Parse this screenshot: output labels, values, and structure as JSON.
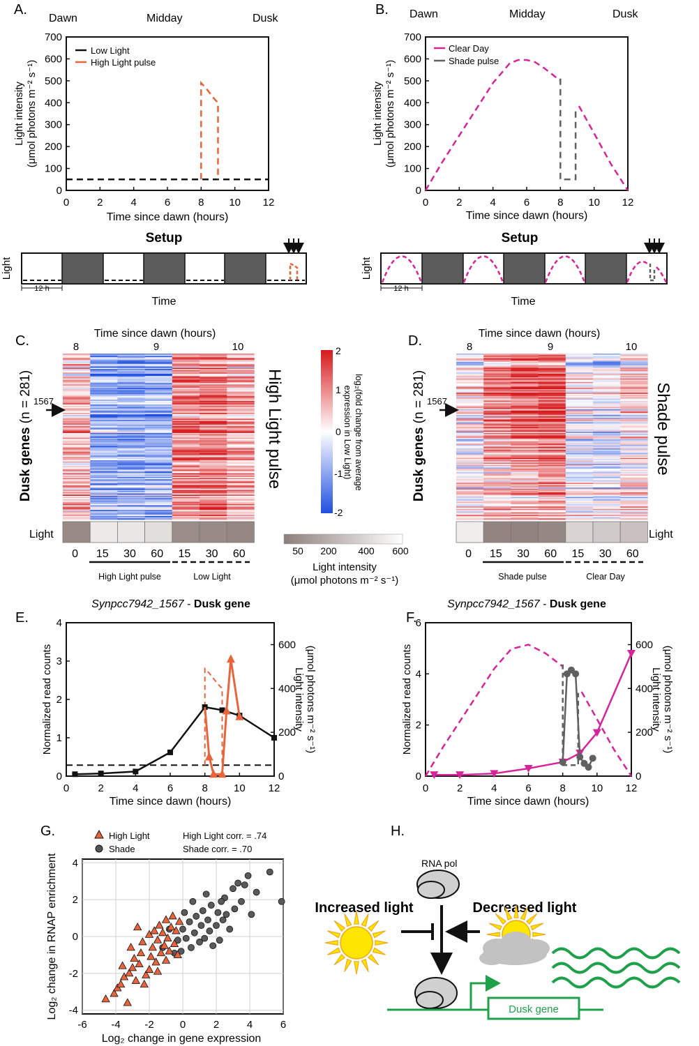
{
  "panelA": {
    "letter": "A.",
    "time_labels": [
      "Dawn",
      "Midday",
      "Dusk"
    ],
    "xlabel": "Time since dawn (hours)",
    "ylabel_line1": "Light intensity",
    "ylabel_line2": "(μmol photons m⁻² s⁻¹)",
    "xticks": [
      "0",
      "2",
      "4",
      "6",
      "8",
      "10",
      "12"
    ],
    "yticks": [
      "0",
      "100",
      "200",
      "300",
      "400",
      "500",
      "600",
      "700"
    ],
    "legend": [
      "Low Light",
      "High Light pulse"
    ],
    "series": {
      "low_light": {
        "x": [
          0,
          12
        ],
        "y": [
          50,
          50
        ]
      },
      "high_pulse": {
        "x": [
          8,
          8,
          8.25,
          8.75,
          9,
          9
        ],
        "y": [
          50,
          490,
          470,
          420,
          400,
          50
        ]
      }
    }
  },
  "panelB": {
    "letter": "B.",
    "time_labels": [
      "Dawn",
      "Midday",
      "Dusk"
    ],
    "xlabel": "Time since dawn (hours)",
    "ylabel_line1": "Light intensity",
    "ylabel_line2": "(μmol photons m⁻² s⁻¹)",
    "xticks": [
      "0",
      "2",
      "4",
      "6",
      "8",
      "10",
      "12"
    ],
    "yticks": [
      "0",
      "100",
      "200",
      "300",
      "400",
      "500",
      "600",
      "700"
    ],
    "legend": [
      "Clear Day",
      "Shade pulse"
    ],
    "series": {
      "clear_day_x": [
        0,
        1,
        2,
        3,
        4,
        5,
        5.5,
        6,
        6.5,
        7,
        7.5,
        8,
        null,
        9.1,
        10,
        11,
        12
      ],
      "clear_day_y": [
        0,
        130,
        250,
        370,
        490,
        580,
        595,
        595,
        585,
        560,
        530,
        500,
        null,
        385,
        260,
        120,
        0
      ],
      "shade_x": [
        8,
        8,
        8.5,
        8.9,
        8.9
      ],
      "shade_y": [
        510,
        50,
        50,
        50,
        380
      ]
    }
  },
  "setup": {
    "title": "Setup",
    "ylabel": "Light",
    "xlabel": "Time",
    "scale": "12 h"
  },
  "panelC": {
    "letter": "C.",
    "top_label": "Time since dawn (hours)",
    "top_ticks": [
      "8",
      "9",
      "10"
    ],
    "ylabel": "Dusk genes",
    "ylabel_n": "(n = 281)",
    "gene_marker": "1567",
    "side_label": "High Light pulse",
    "light_label": "Light",
    "minutes": [
      "0",
      "15",
      "30",
      "60",
      "15",
      "30",
      "60"
    ],
    "group1": "High Light pulse",
    "group2": "Low Light"
  },
  "panelD": {
    "letter": "D.",
    "top_label": "Time since dawn (hours)",
    "top_ticks": [
      "8",
      "9",
      "10"
    ],
    "ylabel": "Dusk genes",
    "ylabel_n": "(n = 281)",
    "gene_marker": "1567",
    "side_label": "Shade pulse",
    "light_label": "Light",
    "minutes": [
      "0",
      "15",
      "30",
      "60",
      "15",
      "30",
      "60"
    ],
    "group1": "Shade pulse",
    "group2": "Clear Day"
  },
  "colorbar": {
    "ticks": [
      "2",
      "1",
      "0",
      "-1",
      "-2"
    ],
    "label_line1": "log₂(fold change from average",
    "label_line2": "expression in Low Light)",
    "light_ticks": [
      "50",
      "200",
      "400",
      "600"
    ],
    "light_label_line1": "Light intensity",
    "light_label_line2": "(μmol photons m⁻² s⁻¹)"
  },
  "panelE": {
    "letter": "E.",
    "title_italic": "Synpcc7942_1567",
    "title_rest": " - ",
    "title_bold": "Dusk gene",
    "xlabel": "Time since dawn (hours)",
    "ylabel": "Normalized read counts",
    "ylabel_right_line1": "Light intensity",
    "ylabel_right_line2": "(μmol photons m⁻² s⁻¹)",
    "xticks": [
      "0",
      "2",
      "4",
      "6",
      "8",
      "10",
      "12"
    ],
    "yticks": [
      "0",
      "1",
      "2",
      "3",
      "4"
    ],
    "yticks_right": [
      "0",
      "200",
      "400",
      "600"
    ],
    "chart_data": {
      "type": "line",
      "low_light_counts": {
        "x": [
          0.5,
          2,
          4,
          6,
          8,
          9,
          10,
          12
        ],
        "y": [
          0.05,
          0.07,
          0.12,
          0.62,
          1.8,
          1.72,
          1.58,
          1.0
        ]
      },
      "high_light_counts": {
        "x": [
          8,
          8.25,
          8.5,
          9,
          9.25,
          9.5,
          10
        ],
        "y": [
          1.8,
          0.5,
          0.05,
          0.05,
          1.7,
          3.05,
          1.55
        ]
      },
      "light_low": {
        "x": [
          0,
          12
        ],
        "y": [
          50,
          50
        ]
      },
      "light_high": {
        "x": [
          8,
          8,
          8.25,
          8.75,
          9,
          9
        ],
        "y": [
          50,
          490,
          470,
          420,
          400,
          50
        ]
      }
    }
  },
  "panelF": {
    "letter": "F.",
    "title_italic": "Synpcc7942_1567",
    "title_rest": " - ",
    "title_bold": "Dusk gene",
    "xlabel": "Time since dawn (hours)",
    "ylabel": "Normalized read counts",
    "ylabel_right_line1": "Light intensity",
    "ylabel_right_line2": "(μmol photons m⁻² s⁻¹)",
    "xticks": [
      "0",
      "2",
      "4",
      "6",
      "8",
      "10",
      "12"
    ],
    "yticks": [
      "0",
      "2",
      "4",
      "6"
    ],
    "yticks_right": [
      "0",
      "200",
      "400",
      "600"
    ],
    "chart_data": {
      "type": "line",
      "clear_counts": {
        "x": [
          0.5,
          2,
          4,
          6,
          8,
          9,
          10,
          12
        ],
        "y": [
          0.05,
          0.05,
          0.1,
          0.3,
          0.55,
          0.9,
          1.7,
          4.8
        ]
      },
      "shade_counts": {
        "x": [
          8,
          8.25,
          8.5,
          8.75,
          9,
          9.25,
          9.5,
          9.75
        ],
        "y": [
          0.55,
          4.0,
          4.15,
          4.0,
          0.75,
          0.5,
          0.35,
          0.7
        ]
      },
      "light_clear_x": [
        0,
        1,
        2,
        3,
        4,
        5,
        6,
        7,
        8,
        null,
        9.1,
        10,
        11,
        12
      ],
      "light_clear_y": [
        0,
        130,
        250,
        370,
        490,
        580,
        600,
        560,
        500,
        null,
        385,
        260,
        120,
        0
      ],
      "light_shade_x": [
        8,
        8,
        8.5,
        8.9,
        8.9
      ],
      "light_shade_y": [
        510,
        50,
        50,
        50,
        380
      ]
    }
  },
  "panelG": {
    "letter": "G.",
    "legend": [
      "High Light",
      "Shade"
    ],
    "corr1": "High Light corr. = .74",
    "corr2": "Shade corr. = .70",
    "xlabel": "Log₂ change in gene expression",
    "ylabel": "Log₂ change in RNAP enrichment",
    "xticks": [
      "-6",
      "-4",
      "-2",
      "0",
      "2",
      "4",
      "6"
    ],
    "yticks": [
      "-4",
      "-2",
      "0",
      "2",
      "4"
    ],
    "chart_data": {
      "type": "scatter",
      "high_light": [
        [
          -4.6,
          -3.4
        ],
        [
          -4.1,
          -3.1
        ],
        [
          -3.9,
          -2.8
        ],
        [
          -3.7,
          -2.6
        ],
        [
          -3.5,
          -2.2
        ],
        [
          -3.3,
          -3.6
        ],
        [
          -3.6,
          -1.6
        ],
        [
          -3.2,
          -2.0
        ],
        [
          -3.0,
          -1.7
        ],
        [
          -2.9,
          -1.2
        ],
        [
          -2.8,
          -2.4
        ],
        [
          -2.6,
          -1.5
        ],
        [
          -2.5,
          -0.9
        ],
        [
          -2.4,
          -0.3
        ],
        [
          -2.2,
          -2.1
        ],
        [
          -2.0,
          -1.8
        ],
        [
          -2.0,
          0.1
        ],
        [
          -1.9,
          -1.1
        ],
        [
          -1.8,
          -0.6
        ],
        [
          -1.7,
          0.3
        ],
        [
          -1.6,
          -1.4
        ],
        [
          -1.5,
          -0.2
        ],
        [
          -1.4,
          0.6
        ],
        [
          -1.3,
          -0.9
        ],
        [
          -1.2,
          0.2
        ],
        [
          -1.1,
          -0.5
        ],
        [
          -1.0,
          0.9
        ],
        [
          -0.9,
          -0.1
        ],
        [
          -0.8,
          -0.8
        ],
        [
          -0.7,
          0.5
        ],
        [
          -0.6,
          1.1
        ],
        [
          -0.5,
          -0.4
        ],
        [
          -0.4,
          0.3
        ],
        [
          -0.3,
          -1.0
        ],
        [
          -2.7,
          0.5
        ],
        [
          -3.1,
          -0.6
        ],
        [
          -2.3,
          -2.6
        ],
        [
          -1.5,
          -1.9
        ],
        [
          -1.0,
          -1.3
        ],
        [
          -0.2,
          0.8
        ]
      ],
      "shade": [
        [
          -0.5,
          -0.9
        ],
        [
          -0.3,
          -0.2
        ],
        [
          0.0,
          0.4
        ],
        [
          0.2,
          -0.1
        ],
        [
          0.4,
          0.8
        ],
        [
          0.5,
          -0.6
        ],
        [
          0.7,
          0.2
        ],
        [
          0.8,
          1.1
        ],
        [
          1.0,
          -0.3
        ],
        [
          1.1,
          0.6
        ],
        [
          1.2,
          1.4
        ],
        [
          1.3,
          -0.1
        ],
        [
          1.5,
          0.9
        ],
        [
          1.6,
          0.3
        ],
        [
          1.7,
          1.7
        ],
        [
          1.8,
          -0.5
        ],
        [
          2.0,
          0.6
        ],
        [
          2.1,
          1.3
        ],
        [
          2.2,
          -0.2
        ],
        [
          2.4,
          0.9
        ],
        [
          2.5,
          2.1
        ],
        [
          2.6,
          1.2
        ],
        [
          2.8,
          0.4
        ],
        [
          3.0,
          2.6
        ],
        [
          3.1,
          1.5
        ],
        [
          3.3,
          2.9
        ],
        [
          3.5,
          1.9
        ],
        [
          3.7,
          2.8
        ],
        [
          3.9,
          3.3
        ],
        [
          4.1,
          1.2
        ],
        [
          4.4,
          2.4
        ],
        [
          5.2,
          3.5
        ],
        [
          5.9,
          1.9
        ],
        [
          -1.2,
          -0.6
        ],
        [
          -0.8,
          0.4
        ],
        [
          0.1,
          1.3
        ],
        [
          0.6,
          1.9
        ],
        [
          1.4,
          2.3
        ],
        [
          2.3,
          1.9
        ],
        [
          -0.1,
          -0.8
        ]
      ]
    }
  },
  "panelH": {
    "letter": "H.",
    "rnapol": "RNA pol",
    "increased": "Increased light",
    "decreased": "Decreased light",
    "gene": "Dusk gene"
  },
  "colors": {
    "orange": "#E8643C",
    "magenta": "#D6249A",
    "grey": "#606060",
    "green": "#1FA04A",
    "sun": "#FFE600",
    "sun_ray": "#F2A81D"
  }
}
